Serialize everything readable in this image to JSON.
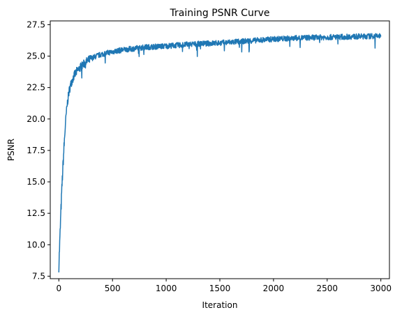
{
  "chart_data": {
    "type": "line",
    "title": "Training PSNR Curve",
    "xlabel": "Iteration",
    "ylabel": "PSNR",
    "xlim": [
      -80,
      3080
    ],
    "ylim": [
      7.3,
      27.8
    ],
    "xticks": [
      0,
      500,
      1000,
      1500,
      2000,
      2500,
      3000
    ],
    "yticks": [
      7.5,
      10.0,
      12.5,
      15.0,
      17.5,
      20.0,
      22.5,
      25.0,
      27.5
    ],
    "ytick_labels": [
      "7.5",
      "10.0",
      "12.5",
      "15.0",
      "17.5",
      "20.0",
      "22.5",
      "25.0",
      "27.5"
    ],
    "grid": false,
    "legend": "none",
    "line_color": "#1f77b4",
    "series": [
      {
        "x": [
          0,
          10,
          20,
          30,
          40,
          50,
          60,
          70,
          80,
          90,
          100,
          120,
          140,
          160,
          180,
          200,
          250,
          300,
          350,
          400,
          500,
          600,
          700,
          800,
          900,
          1000,
          1250,
          1500,
          1750,
          2000,
          2250,
          2500,
          2750,
          3000
        ],
        "y": [
          8.3,
          10.5,
          12.8,
          14.8,
          16.5,
          18.0,
          19.4,
          20.5,
          21.3,
          21.9,
          22.4,
          23.0,
          23.4,
          23.7,
          23.9,
          24.1,
          24.5,
          24.8,
          25.0,
          25.15,
          25.35,
          25.5,
          25.6,
          25.7,
          25.75,
          25.8,
          25.95,
          26.05,
          26.2,
          26.35,
          26.45,
          26.5,
          26.55,
          26.6
        ]
      }
    ]
  }
}
